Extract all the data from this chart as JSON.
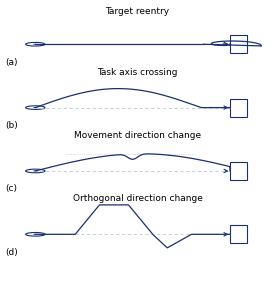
{
  "bg_color": "#ffffff",
  "line_color": "#1a3070",
  "dash_color": "#c0c8d8",
  "title_fontsize": 6.5,
  "label_fontsize": 6.5,
  "panel_labels": [
    "(a)",
    "(b)",
    "(c)",
    "(d)"
  ],
  "titles": [
    "Target reentry",
    "Task axis crossing",
    "Movement direction change",
    "Orthogonal direction change"
  ],
  "fig_width": 2.75,
  "fig_height": 2.88,
  "dpi": 100
}
